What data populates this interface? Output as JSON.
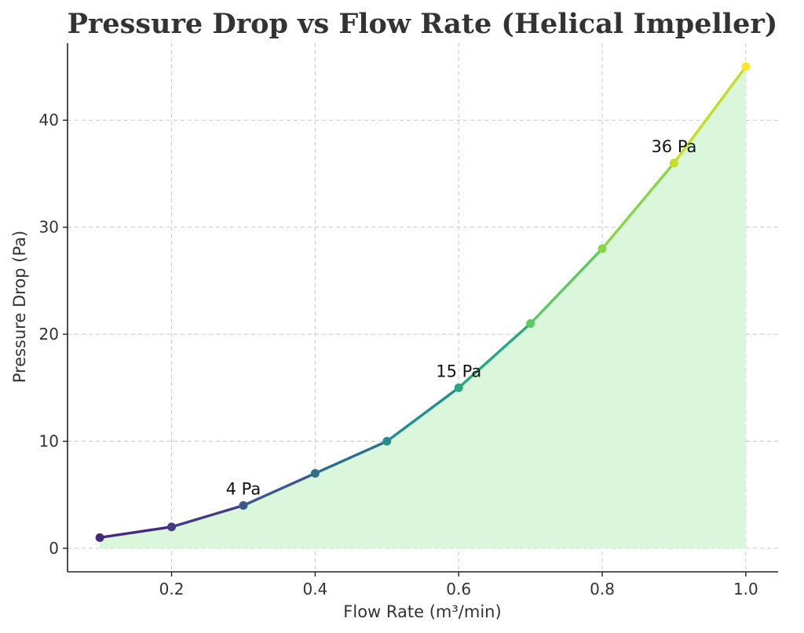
{
  "chart_data": {
    "type": "line",
    "title": "Pressure Drop vs Flow Rate (Helical Impeller)",
    "xlabel": "Flow Rate (m³/min)",
    "ylabel": "Pressure Drop (Pa)",
    "xlim": [
      0.055,
      1.045
    ],
    "ylim": [
      -2.2,
      47.2
    ],
    "x_ticks": [
      "0.2",
      "0.4",
      "0.6",
      "0.8",
      "1.0"
    ],
    "y_ticks": [
      "0",
      "10",
      "20",
      "30",
      "40"
    ],
    "grid": true,
    "fill_under": true,
    "fill_color": "#dbf7db",
    "colormap": "viridis",
    "series": [
      {
        "x": [
          0.1,
          0.2,
          0.3,
          0.4,
          0.5,
          0.6,
          0.7,
          0.8,
          0.9,
          1.0
        ],
        "y": [
          1,
          2,
          4,
          7,
          10,
          15,
          21,
          28,
          36,
          45
        ]
      }
    ],
    "point_colors": [
      "#472a7a",
      "#443b84",
      "#3b5a8b",
      "#2f6f8e",
      "#21908d",
      "#27a882",
      "#5ec962",
      "#89d548",
      "#c2df23",
      "#fde725"
    ],
    "annotations": [
      {
        "text": "4 Pa",
        "x": 0.3,
        "y": 4
      },
      {
        "text": "15 Pa",
        "x": 0.6,
        "y": 15
      },
      {
        "text": "36 Pa",
        "x": 0.9,
        "y": 36
      }
    ]
  }
}
